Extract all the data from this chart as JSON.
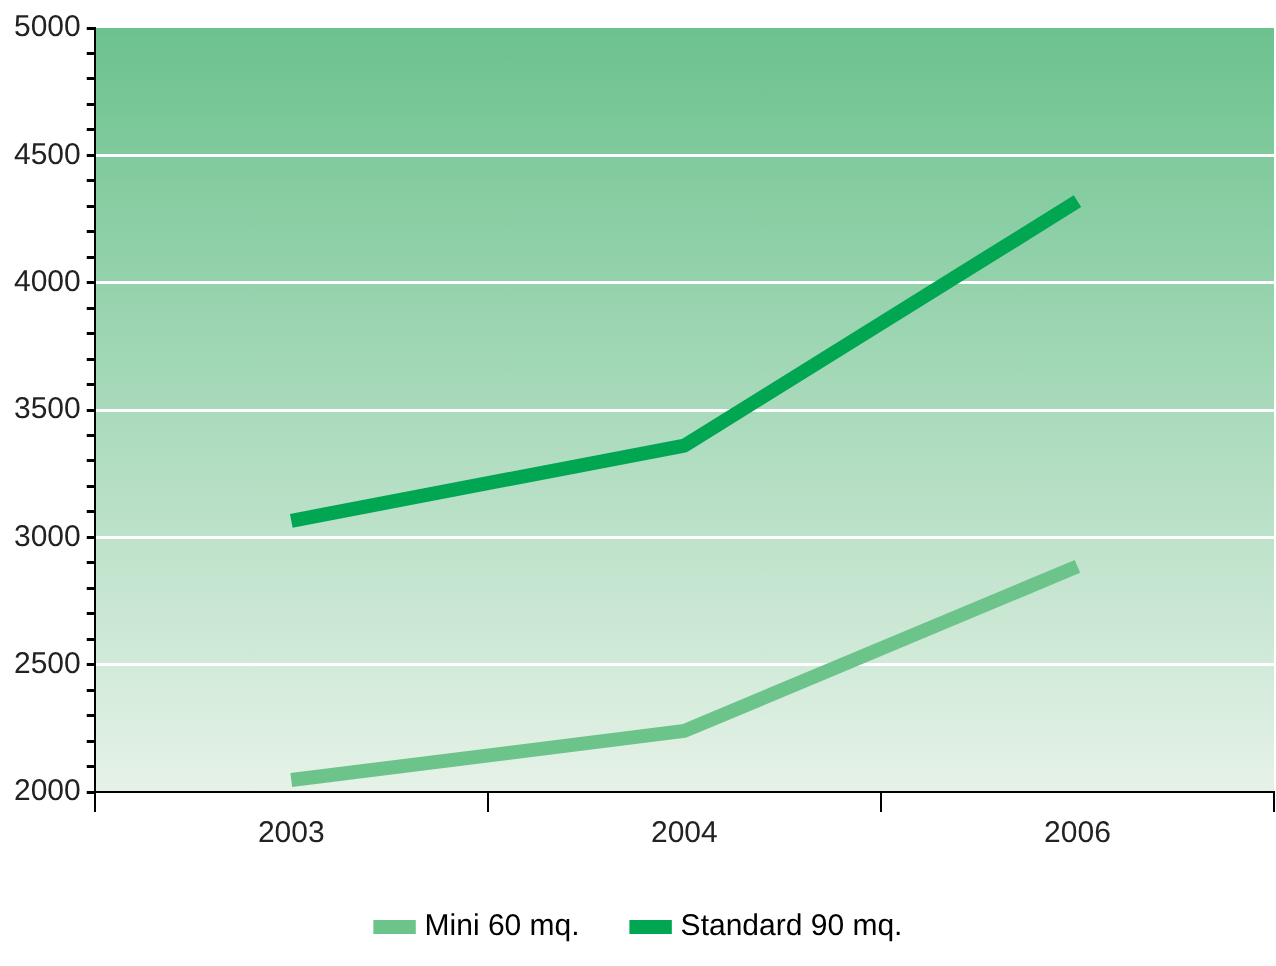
{
  "chart_data": {
    "type": "line",
    "categories": [
      "2003",
      "2004",
      "2006"
    ],
    "series": [
      {
        "name": "Mini 60 mq.",
        "color": "#6cc48a",
        "values": [
          2047,
          2240,
          2886
        ]
      },
      {
        "name": "Standard 90 mq.",
        "color": "#00a651",
        "values": [
          3065,
          3360,
          4320
        ]
      }
    ],
    "ylim": [
      2000,
      5000
    ],
    "yticks": [
      2000,
      {
        "value": 2100,
        "label": null
      },
      {
        "value": 2200,
        "label": null
      },
      {
        "value": 2300,
        "label": null
      },
      {
        "value": 2400,
        "label": null
      },
      2500,
      {
        "value": 2600,
        "label": null
      },
      {
        "value": 2700,
        "label": null
      },
      {
        "value": 2800,
        "label": null
      },
      {
        "value": 2900,
        "label": null
      },
      3000,
      {
        "value": 3100,
        "label": null
      },
      {
        "value": 3200,
        "label": null
      },
      {
        "value": 3300,
        "label": null
      },
      {
        "value": 3400,
        "label": null
      },
      3500,
      {
        "value": 3600,
        "label": null
      },
      {
        "value": 3700,
        "label": null
      },
      {
        "value": 3800,
        "label": null
      },
      {
        "value": 3900,
        "label": null
      },
      4000,
      {
        "value": 4100,
        "label": null
      },
      {
        "value": 4200,
        "label": null
      },
      {
        "value": 4300,
        "label": null
      },
      {
        "value": 4400,
        "label": null
      },
      4500,
      {
        "value": 4600,
        "label": null
      },
      {
        "value": 4700,
        "label": null
      },
      {
        "value": 4800,
        "label": null
      },
      {
        "value": 4900,
        "label": null
      },
      5000
    ],
    "grid": "y",
    "legend": "bottom",
    "marker": "none",
    "line_style": "solid"
  }
}
